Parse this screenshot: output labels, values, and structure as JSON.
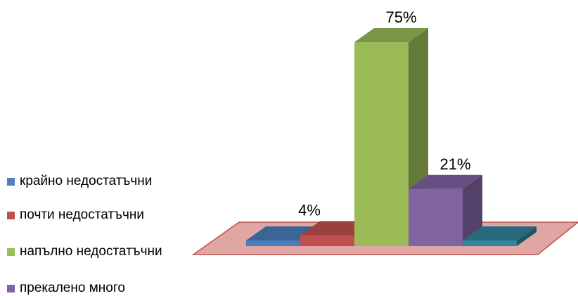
{
  "chart_data": {
    "type": "bar",
    "categories": [
      "крайно недостатъчни",
      "почти недостатъчни",
      "напълно недостатъчни",
      "прекалено много",
      ""
    ],
    "values": [
      0,
      4,
      75,
      21,
      0
    ],
    "data_labels": [
      "",
      "4%",
      "75%",
      "21%",
      ""
    ],
    "colors": [
      "#4a7ebb",
      "#c0504d",
      "#9bbb59",
      "#8064a2",
      "#31859c"
    ],
    "floor_color": "#d99694",
    "legend": [
      {
        "label": "крайно недостатъчни",
        "color": "#4f81bd"
      },
      {
        "label": "почти недостатъчни",
        "color": "#c0504d"
      },
      {
        "label": "напълно недостатъчни",
        "color": "#9bbb59"
      },
      {
        "label": "прекалено много",
        "color": "#8064a2"
      }
    ],
    "legend_position": "left",
    "ylim": [
      0,
      100
    ],
    "title": "",
    "xlabel": "",
    "ylabel": ""
  }
}
